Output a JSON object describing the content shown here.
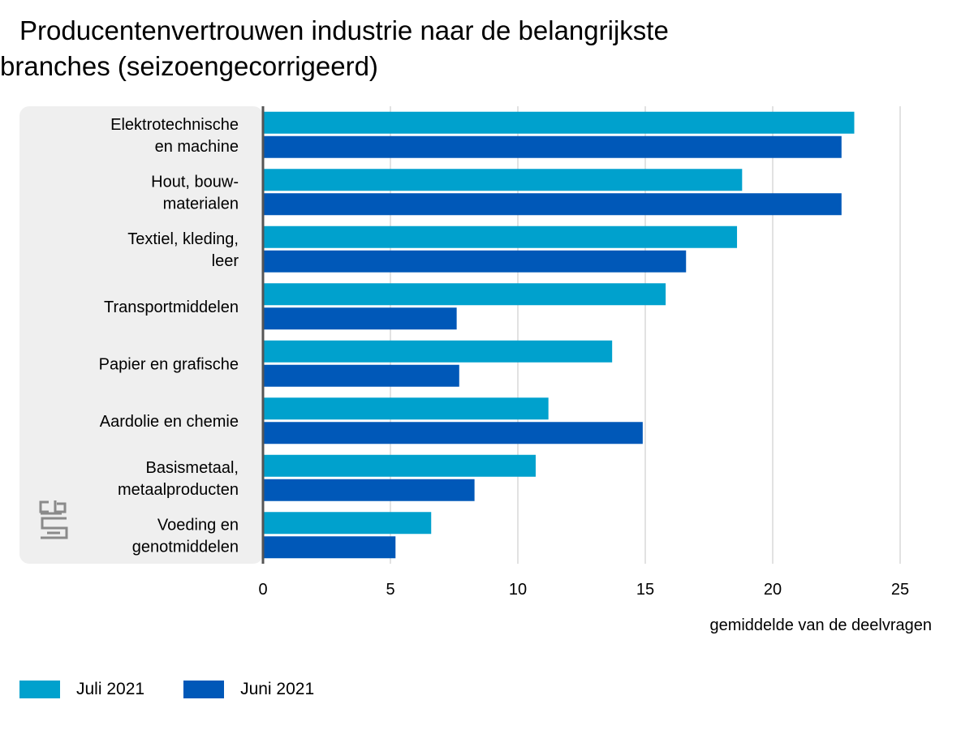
{
  "title": {
    "line1": "Producentenvertrouwen industrie naar de belangrijkste",
    "line2": "branches (seizoengecorrigeerd)"
  },
  "chart_data": {
    "type": "bar",
    "orientation": "horizontal",
    "categories": [
      [
        "Elektrotechnische",
        "en machine"
      ],
      [
        "Hout, bouw-",
        "materialen"
      ],
      [
        "Textiel, kleding,",
        "leer"
      ],
      [
        "Transportmiddelen"
      ],
      [
        "Papier en grafische"
      ],
      [
        "Aardolie en chemie"
      ],
      [
        "Basismetaal,",
        "metaalproducten"
      ],
      [
        "Voeding en",
        "genotmiddelen"
      ]
    ],
    "series": [
      {
        "name": "Juli 2021",
        "color": "#00a1cd",
        "values": [
          23.2,
          18.8,
          18.6,
          15.8,
          13.7,
          11.2,
          10.7,
          6.6
        ]
      },
      {
        "name": "Juni 2021",
        "color": "#0058b8",
        "values": [
          22.7,
          22.7,
          16.6,
          7.6,
          7.7,
          14.9,
          8.3,
          5.2
        ]
      }
    ],
    "xlabel": "gemiddelde van de deelvragen",
    "xlim": [
      0,
      25
    ],
    "xticks": [
      0,
      5,
      10,
      15,
      20,
      25
    ],
    "grid": true,
    "legend_position": "bottom-left"
  },
  "logo": {
    "icon": "cbs-logo-icon",
    "text": "cbs"
  }
}
